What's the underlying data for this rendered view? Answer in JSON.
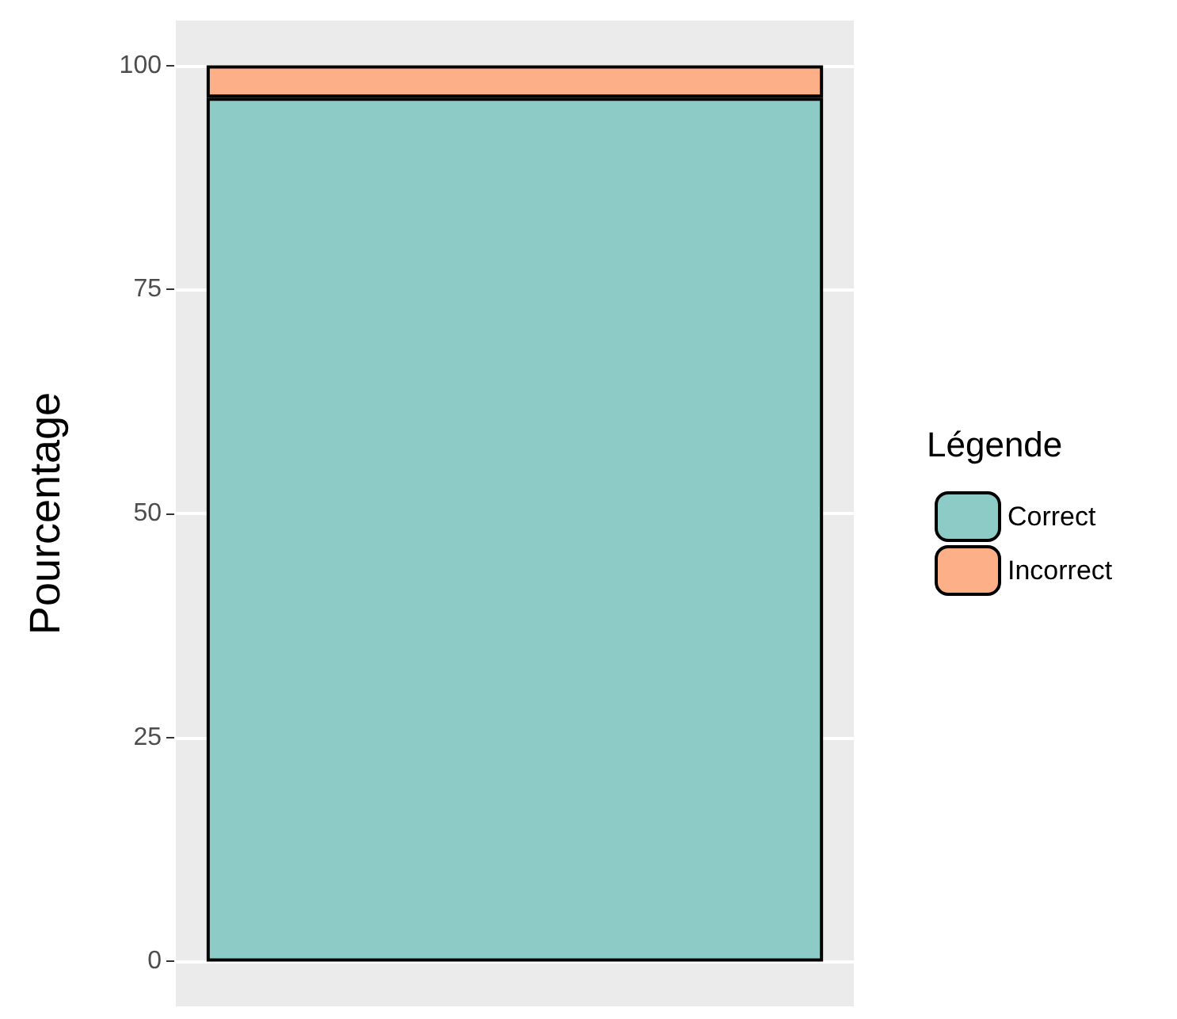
{
  "chart_data": {
    "type": "bar",
    "stacked": true,
    "ylabel": "Pourcentage",
    "legend_title": "Légende",
    "categories": [
      null
    ],
    "series": [
      {
        "name": "Correct",
        "color": "#8dcbc6",
        "values": [
          96.4
        ]
      },
      {
        "name": "Incorrect",
        "color": "#fdb088",
        "values": [
          3.6
        ]
      }
    ],
    "ylim": [
      -5,
      105
    ],
    "yticks": [
      0,
      25,
      50,
      75,
      100
    ],
    "grid": true,
    "legend": "right"
  }
}
